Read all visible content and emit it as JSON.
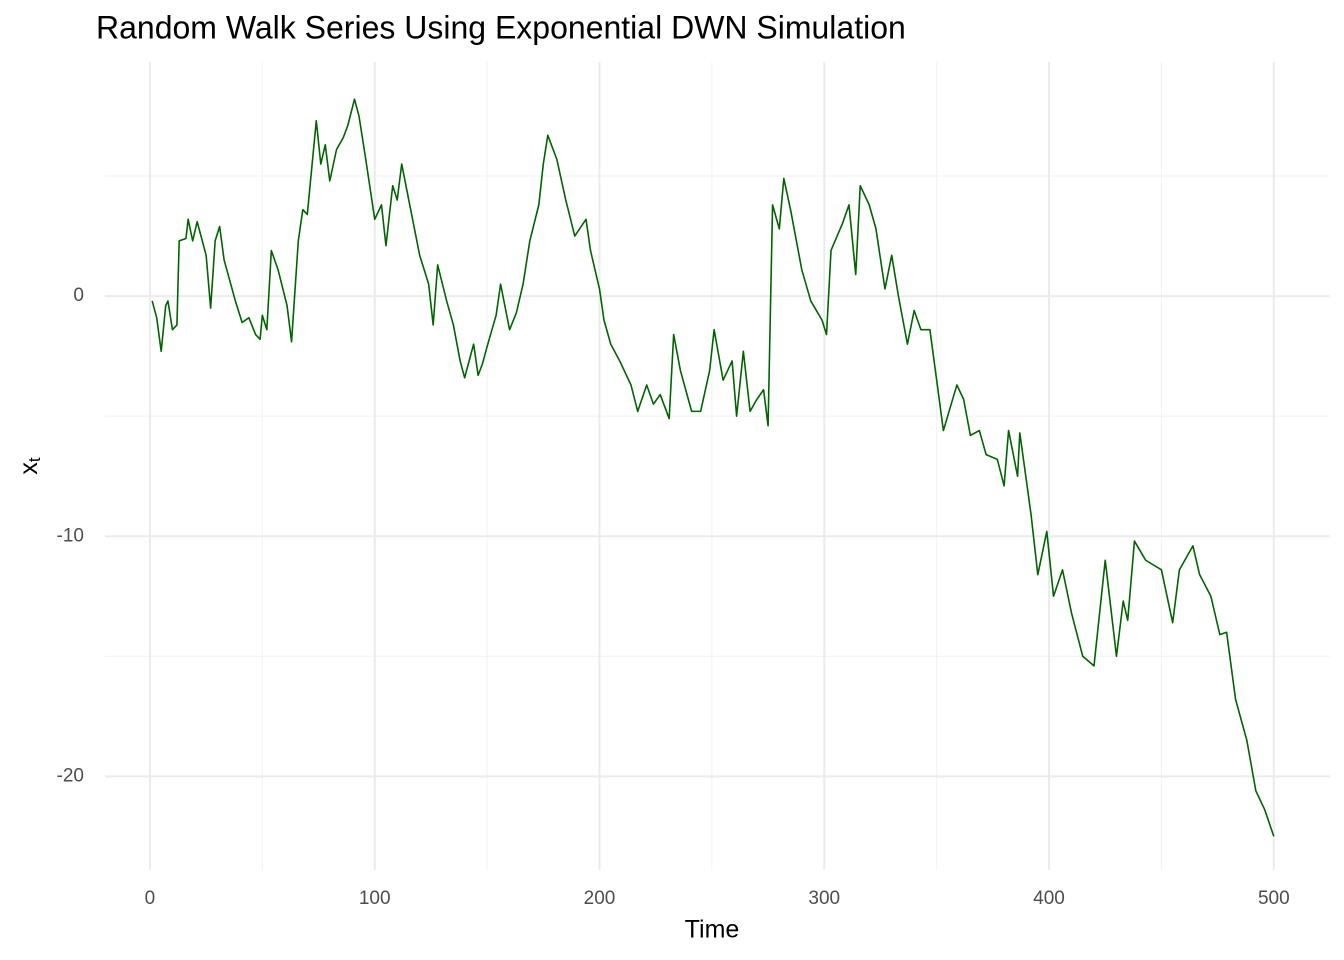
{
  "chart_data": {
    "type": "line",
    "title": "Random Walk Series Using Exponential DWN Simulation",
    "xlabel": "Time",
    "ylabel": "x",
    "ylabel_subscript": "t",
    "color": "#006400",
    "grid": true,
    "xlim": [
      -20,
      525
    ],
    "ylim": [
      -23.9,
      9.75
    ],
    "xticks": [
      0,
      100,
      200,
      300,
      400,
      500
    ],
    "yticks": [
      -20,
      -10,
      0
    ],
    "xminor": [
      50,
      150,
      250,
      350,
      450
    ],
    "yminor": [
      -15,
      -5,
      5
    ],
    "x": [
      1,
      3,
      5,
      7,
      8,
      10,
      12,
      13,
      16,
      17,
      19,
      21,
      25,
      27,
      29,
      31,
      33,
      38,
      41,
      44,
      47,
      49,
      50,
      52,
      54,
      57,
      61,
      63,
      66,
      68,
      70,
      74,
      76,
      78,
      80,
      83,
      86,
      88,
      91,
      93,
      96,
      100,
      103,
      105,
      108,
      110,
      112,
      116,
      120,
      124,
      126,
      128,
      132,
      135,
      138,
      140,
      144,
      146,
      148,
      150,
      154,
      156,
      160,
      163,
      166,
      169,
      173,
      175,
      177,
      181,
      185,
      189,
      194,
      196,
      200,
      202,
      205,
      209,
      214,
      217,
      221,
      224,
      227,
      231,
      233,
      236,
      241,
      245,
      249,
      251,
      255,
      259,
      261,
      264,
      267,
      270,
      273,
      275,
      277,
      280,
      282,
      285,
      290,
      294,
      299,
      301,
      303,
      308,
      311,
      314,
      316,
      320,
      323,
      327,
      330,
      333,
      337,
      340,
      343,
      347,
      350,
      353,
      359,
      362,
      365,
      369,
      372,
      377,
      380,
      382,
      386,
      387,
      392,
      395,
      399,
      402,
      406,
      410,
      415,
      420,
      425,
      430,
      433,
      435,
      438,
      443,
      450,
      455,
      458,
      464,
      467,
      472,
      476,
      479,
      483,
      488,
      492,
      496,
      500
    ],
    "values": [
      -0.2,
      -0.9,
      -2.3,
      -0.4,
      -0.2,
      -1.4,
      -1.2,
      2.3,
      2.4,
      3.2,
      2.3,
      3.1,
      1.7,
      -0.5,
      2.3,
      2.9,
      1.5,
      -0.2,
      -1.1,
      -0.9,
      -1.6,
      -1.8,
      -0.8,
      -1.4,
      1.9,
      1.1,
      -0.4,
      -1.9,
      2.3,
      3.6,
      3.4,
      7.3,
      5.5,
      6.3,
      4.8,
      6.1,
      6.6,
      7.1,
      8.2,
      7.5,
      5.7,
      3.2,
      3.8,
      2.1,
      4.6,
      4.0,
      5.5,
      3.6,
      1.7,
      0.5,
      -1.2,
      1.3,
      -0.2,
      -1.2,
      -2.7,
      -3.4,
      -2.0,
      -3.3,
      -2.8,
      -2.1,
      -0.8,
      0.5,
      -1.4,
      -0.7,
      0.5,
      2.3,
      3.8,
      5.5,
      6.7,
      5.7,
      4.0,
      2.5,
      3.2,
      1.9,
      0.3,
      -1.0,
      -2.0,
      -2.7,
      -3.7,
      -4.8,
      -3.7,
      -4.5,
      -4.1,
      -5.1,
      -1.6,
      -3.1,
      -4.8,
      -4.8,
      -3.1,
      -1.4,
      -3.5,
      -2.7,
      -5.0,
      -2.3,
      -4.8,
      -4.3,
      -3.9,
      -5.4,
      3.8,
      2.8,
      4.9,
      3.6,
      1.1,
      -0.2,
      -1.0,
      -1.6,
      1.9,
      3.0,
      3.8,
      0.9,
      4.6,
      3.8,
      2.8,
      0.3,
      1.7,
      0.0,
      -2.0,
      -0.6,
      -1.4,
      -1.4,
      -3.5,
      -5.6,
      -3.7,
      -4.3,
      -5.8,
      -5.6,
      -6.6,
      -6.8,
      -7.9,
      -5.6,
      -7.5,
      -5.7,
      -9.1,
      -11.6,
      -9.8,
      -12.5,
      -11.4,
      -13.2,
      -15.0,
      -15.4,
      -11.0,
      -15.0,
      -12.7,
      -13.5,
      -10.2,
      -11.0,
      -11.4,
      -13.6,
      -11.4,
      -10.4,
      -11.6,
      -12.5,
      -14.1,
      -14.0,
      -16.8,
      -18.5,
      -20.6,
      -21.4,
      -22.5
    ]
  }
}
